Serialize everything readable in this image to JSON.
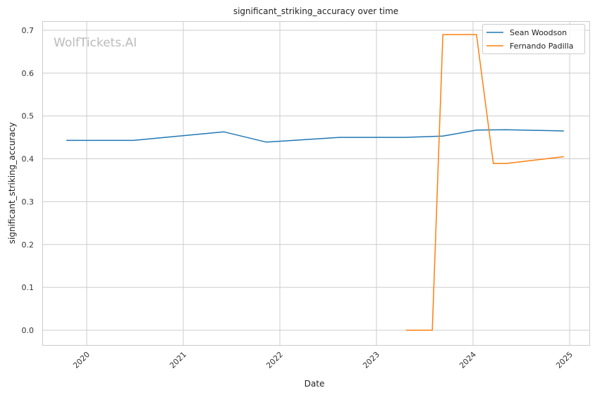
{
  "chart_data": {
    "type": "line",
    "title": "significant_striking_accuracy over time",
    "xlabel": "Date",
    "ylabel": "significant_striking_accuracy",
    "watermark": "WolfTickets.AI",
    "x_ticks": [
      "2020",
      "2021",
      "2022",
      "2023",
      "2024",
      "2025"
    ],
    "y_ticks": [
      "0.0",
      "0.1",
      "0.2",
      "0.3",
      "0.4",
      "0.5",
      "0.6",
      "0.7"
    ],
    "ylim": [
      -0.035,
      0.735
    ],
    "xlim": [
      "2019-07-15",
      "2025-02-10"
    ],
    "grid": true,
    "legend_position": "top-right",
    "series": [
      {
        "name": "Sean Woodson",
        "color": "#1f77b4",
        "x": [
          "2019-10-16",
          "2020-06-27",
          "2021-06-03",
          "2021-11-10",
          "2022-08-14",
          "2023-04-20",
          "2023-09-09",
          "2024-01-14",
          "2024-05-04",
          "2024-12-10"
        ],
        "y": [
          0.443,
          0.443,
          0.463,
          0.439,
          0.45,
          0.45,
          0.453,
          0.467,
          0.468,
          0.465
        ]
      },
      {
        "name": "Fernando Padilla",
        "color": "#ff7f0e",
        "x": [
          "2023-04-22",
          "2023-07-31",
          "2023-09-09",
          "2024-01-14",
          "2024-03-18",
          "2024-05-04",
          "2024-12-10"
        ],
        "y": [
          0.0,
          0.0,
          0.69,
          0.69,
          0.389,
          0.389,
          0.405
        ]
      }
    ]
  }
}
